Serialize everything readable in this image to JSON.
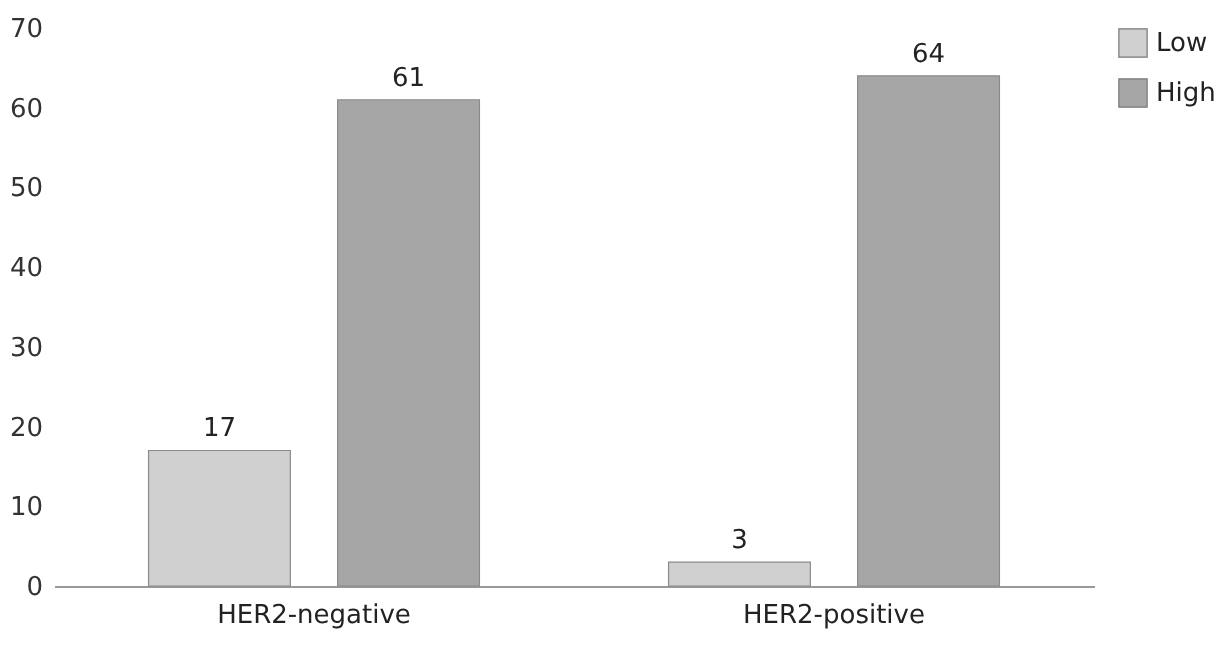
{
  "chart_data": {
    "type": "bar",
    "categories": [
      "HER2-negative",
      "HER2-positive"
    ],
    "series": [
      {
        "name": "Low",
        "color": "#d0d0d0",
        "values": [
          17,
          3
        ]
      },
      {
        "name": "High",
        "color": "#a6a6a6",
        "values": [
          61,
          64
        ]
      }
    ],
    "ylim": [
      0,
      70
    ],
    "yticks": [
      0,
      10,
      20,
      30,
      40,
      50,
      60,
      70
    ],
    "data_labels": true,
    "legend": "top right",
    "grid": false
  }
}
